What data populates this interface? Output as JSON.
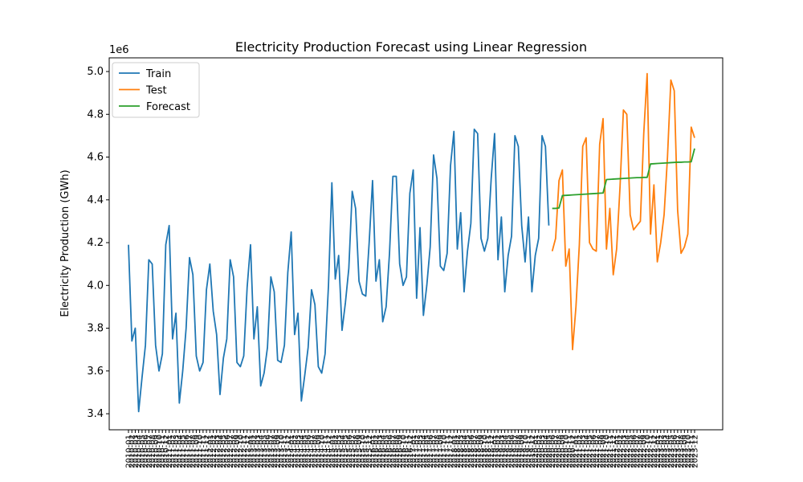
{
  "chart_data": {
    "type": "line",
    "title": "Electricity Production Forecast using Linear Regression",
    "y_label": "Electricity Production (GWh)",
    "y_offset_label": "1e6",
    "legend": "upper left",
    "ylim": [
      3325000,
      5064000
    ],
    "yticks": [
      {
        "value": 3400000,
        "label": "3.4"
      },
      {
        "value": 3600000,
        "label": "3.6"
      },
      {
        "value": 3800000,
        "label": "3.8"
      },
      {
        "value": 4000000,
        "label": "4.0"
      },
      {
        "value": 4200000,
        "label": "4.2"
      },
      {
        "value": 4400000,
        "label": "4.4"
      },
      {
        "value": 4600000,
        "label": "4.6"
      },
      {
        "value": 4800000,
        "label": "4.8"
      },
      {
        "value": 5000000,
        "label": "5.0"
      }
    ],
    "categories": [
      "2010-01",
      "2010-02",
      "2010-03",
      "2010-04",
      "2010-05",
      "2010-06",
      "2010-07",
      "2010-08",
      "2010-09",
      "2010-10",
      "2010-11",
      "2010-12",
      "2011-01",
      "2011-02",
      "2011-03",
      "2011-04",
      "2011-05",
      "2011-06",
      "2011-07",
      "2011-08",
      "2011-09",
      "2011-10",
      "2011-11",
      "2011-12",
      "2012-01",
      "2012-02",
      "2012-03",
      "2012-04",
      "2012-05",
      "2012-06",
      "2012-07",
      "2012-08",
      "2012-09",
      "2012-10",
      "2012-11",
      "2012-12",
      "2013-01",
      "2013-02",
      "2013-03",
      "2013-04",
      "2013-05",
      "2013-06",
      "2013-07",
      "2013-08",
      "2013-09",
      "2013-10",
      "2013-11",
      "2013-12",
      "2014-01",
      "2014-02",
      "2014-03",
      "2014-04",
      "2014-05",
      "2014-06",
      "2014-07",
      "2014-08",
      "2014-09",
      "2014-10",
      "2014-11",
      "2014-12",
      "2015-01",
      "2015-02",
      "2015-03",
      "2015-04",
      "2015-05",
      "2015-06",
      "2015-07",
      "2015-08",
      "2015-09",
      "2015-10",
      "2015-11",
      "2015-12",
      "2016-01",
      "2016-02",
      "2016-03",
      "2016-04",
      "2016-05",
      "2016-06",
      "2016-07",
      "2016-08",
      "2016-09",
      "2016-10",
      "2016-11",
      "2016-12",
      "2017-01",
      "2017-02",
      "2017-03",
      "2017-04",
      "2017-05",
      "2017-06",
      "2017-07",
      "2017-08",
      "2017-09",
      "2017-10",
      "2017-11",
      "2017-12",
      "2018-01",
      "2018-02",
      "2018-03",
      "2018-04",
      "2018-05",
      "2018-06",
      "2018-07",
      "2018-08",
      "2018-09",
      "2018-10",
      "2018-11",
      "2018-12",
      "2019-01",
      "2019-02",
      "2019-03",
      "2019-04",
      "2019-05",
      "2019-06",
      "2019-07",
      "2019-08",
      "2019-09",
      "2019-10",
      "2019-11",
      "2019-12",
      "2020-01",
      "2020-02",
      "2020-03",
      "2020-04",
      "2020-05",
      "2020-06",
      "2020-07",
      "2020-08",
      "2020-09",
      "2020-10",
      "2020-11",
      "2020-12",
      "2021-01",
      "2021-02",
      "2021-03",
      "2021-04",
      "2021-05",
      "2021-06",
      "2021-07",
      "2021-08",
      "2021-09",
      "2021-10",
      "2021-11",
      "2021-12",
      "2022-01",
      "2022-02",
      "2022-03",
      "2022-04",
      "2022-05",
      "2022-06",
      "2022-07",
      "2022-08",
      "2022-09",
      "2022-10",
      "2022-11",
      "2022-12",
      "2023-01",
      "2023-02",
      "2023-03",
      "2023-04",
      "2023-05",
      "2023-06",
      "2023-07",
      "2023-08",
      "2023-09",
      "2023-10",
      "2023-11",
      "2023-12"
    ],
    "series": [
      {
        "name": "Train",
        "color": "#1f77b4",
        "values": [
          4190000,
          3740000,
          3800000,
          3410000,
          3570000,
          3720000,
          4120000,
          4100000,
          3720000,
          3600000,
          3680000,
          4190000,
          4280000,
          3750000,
          3870000,
          3450000,
          3600000,
          3800000,
          4130000,
          4050000,
          3670000,
          3600000,
          3640000,
          3980000,
          4100000,
          3880000,
          3770000,
          3490000,
          3660000,
          3750000,
          4120000,
          4040000,
          3640000,
          3620000,
          3670000,
          3990000,
          4190000,
          3750000,
          3900000,
          3530000,
          3590000,
          3710000,
          4040000,
          3970000,
          3650000,
          3640000,
          3720000,
          4060000,
          4250000,
          3770000,
          3870000,
          3460000,
          3580000,
          3710000,
          3980000,
          3910000,
          3620000,
          3590000,
          3680000,
          4000000,
          4480000,
          4030000,
          4140000,
          3790000,
          3920000,
          4080000,
          4440000,
          4360000,
          4020000,
          3960000,
          3950000,
          4200000,
          4490000,
          4020000,
          4120000,
          3830000,
          3900000,
          4150000,
          4510000,
          4510000,
          4100000,
          4000000,
          4040000,
          4430000,
          4540000,
          3940000,
          4270000,
          3860000,
          4000000,
          4180000,
          4610000,
          4500000,
          4090000,
          4070000,
          4150000,
          4560000,
          4720000,
          4170000,
          4340000,
          3970000,
          4160000,
          4290000,
          4730000,
          4710000,
          4220000,
          4160000,
          4220000,
          4500000,
          4710000,
          4120000,
          4320000,
          3970000,
          4140000,
          4230000,
          4700000,
          4650000,
          4280000,
          4110000,
          4320000,
          3970000,
          4140000,
          4220000,
          4700000,
          4650000,
          4280000,
          null,
          null,
          null,
          null,
          null,
          null,
          null,
          null,
          null,
          null,
          null,
          null,
          null,
          null,
          null,
          null,
          null,
          null,
          null,
          null,
          null,
          null,
          null,
          null,
          null,
          null,
          null,
          null,
          null,
          null,
          null,
          null,
          null,
          null,
          null,
          null,
          null,
          null,
          null,
          null,
          null,
          null,
          null
        ]
      },
      {
        "name": "Test",
        "color": "#ff7f0e",
        "values": [
          null,
          null,
          null,
          null,
          null,
          null,
          null,
          null,
          null,
          null,
          null,
          null,
          null,
          null,
          null,
          null,
          null,
          null,
          null,
          null,
          null,
          null,
          null,
          null,
          null,
          null,
          null,
          null,
          null,
          null,
          null,
          null,
          null,
          null,
          null,
          null,
          null,
          null,
          null,
          null,
          null,
          null,
          null,
          null,
          null,
          null,
          null,
          null,
          null,
          null,
          null,
          null,
          null,
          null,
          null,
          null,
          null,
          null,
          null,
          null,
          null,
          null,
          null,
          null,
          null,
          null,
          null,
          null,
          null,
          null,
          null,
          null,
          null,
          null,
          null,
          null,
          null,
          null,
          null,
          null,
          null,
          null,
          null,
          null,
          null,
          null,
          null,
          null,
          null,
          null,
          null,
          null,
          null,
          null,
          null,
          null,
          null,
          null,
          null,
          null,
          null,
          null,
          null,
          null,
          null,
          null,
          null,
          null,
          null,
          null,
          null,
          null,
          null,
          null,
          null,
          null,
          null,
          null,
          null,
          null,
          null,
          null,
          null,
          null,
          null,
          4160000,
          4220000,
          4490000,
          4540000,
          4090000,
          4170000,
          3700000,
          3900000,
          4190000,
          4650000,
          4690000,
          4200000,
          4170000,
          4160000,
          4660000,
          4780000,
          4170000,
          4360000,
          4050000,
          4170000,
          4460000,
          4820000,
          4800000,
          4330000,
          4260000,
          4280000,
          4300000,
          4710000,
          4990000,
          4240000,
          4470000,
          4110000,
          4200000,
          4330000,
          4600000,
          4960000,
          4910000,
          4350000,
          4150000,
          4180000,
          4240000,
          4740000,
          4690000
        ]
      },
      {
        "name": "Forecast",
        "color": "#2ca02c",
        "values": [
          null,
          null,
          null,
          null,
          null,
          null,
          null,
          null,
          null,
          null,
          null,
          null,
          null,
          null,
          null,
          null,
          null,
          null,
          null,
          null,
          null,
          null,
          null,
          null,
          null,
          null,
          null,
          null,
          null,
          null,
          null,
          null,
          null,
          null,
          null,
          null,
          null,
          null,
          null,
          null,
          null,
          null,
          null,
          null,
          null,
          null,
          null,
          null,
          null,
          null,
          null,
          null,
          null,
          null,
          null,
          null,
          null,
          null,
          null,
          null,
          null,
          null,
          null,
          null,
          null,
          null,
          null,
          null,
          null,
          null,
          null,
          null,
          null,
          null,
          null,
          null,
          null,
          null,
          null,
          null,
          null,
          null,
          null,
          null,
          null,
          null,
          null,
          null,
          null,
          null,
          null,
          null,
          null,
          null,
          null,
          null,
          null,
          null,
          null,
          null,
          null,
          null,
          null,
          null,
          null,
          null,
          null,
          null,
          null,
          null,
          null,
          null,
          null,
          null,
          null,
          null,
          null,
          null,
          null,
          null,
          null,
          null,
          null,
          null,
          null,
          4360000,
          4360000,
          4362000,
          4420000,
          4421000,
          4422000,
          4423000,
          4424000,
          4425000,
          4426000,
          4427000,
          4428000,
          4429000,
          4430000,
          4431000,
          4432000,
          4495000,
          4496000,
          4497000,
          4498000,
          4499000,
          4500000,
          4501000,
          4502000,
          4503000,
          4504000,
          4504000,
          4505000,
          4505000,
          4568000,
          4569000,
          4570000,
          4571000,
          4572000,
          4573000,
          4574000,
          4575000,
          4576000,
          4576000,
          4577000,
          4577000,
          4578000,
          4640000
        ]
      }
    ]
  }
}
